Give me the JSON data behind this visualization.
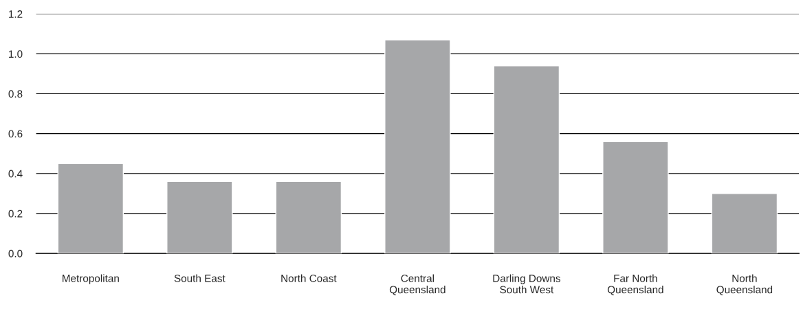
{
  "chart_data": {
    "type": "bar",
    "categories": [
      "Metropolitan",
      "South East",
      "North Coast",
      "Central\nQueensland",
      "Darling Downs\nSouth West",
      "Far North\nQueensland",
      "North\nQueensland"
    ],
    "values": [
      0.45,
      0.36,
      0.36,
      1.07,
      0.94,
      0.56,
      0.3
    ],
    "color": "#a6a7a9",
    "ylim": [
      0,
      1.2
    ],
    "yticks": [
      {
        "value": 0,
        "label": "0.0"
      },
      {
        "value": 0.2,
        "label": "0.2"
      },
      {
        "value": 0.4,
        "label": "0.4"
      },
      {
        "value": 0.6,
        "label": "0.6"
      },
      {
        "value": 0.8,
        "label": "0.8"
      },
      {
        "value": 1.0,
        "label": "1.0"
      },
      {
        "value": 1.2,
        "label": "1.2"
      }
    ],
    "grid": "y"
  }
}
